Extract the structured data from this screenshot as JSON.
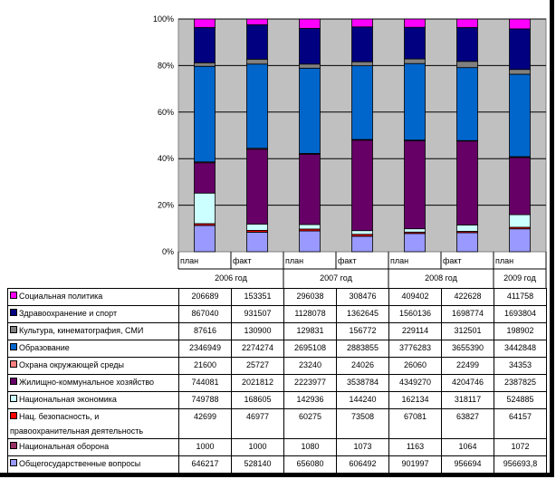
{
  "chart_data": {
    "type": "bar",
    "stacked": "percent",
    "title": "",
    "ylim": [
      0,
      100
    ],
    "yticks": [
      "0%",
      "20%",
      "40%",
      "60%",
      "80%",
      "100%"
    ],
    "categories": [
      {
        "sub": "план",
        "year": "2006 год"
      },
      {
        "sub": "факт",
        "year": "2006 год"
      },
      {
        "sub": "план",
        "year": "2007 год"
      },
      {
        "sub": "факт",
        "year": "2007 год"
      },
      {
        "sub": "план",
        "year": "2008 год"
      },
      {
        "sub": "факт",
        "year": "2008 год"
      },
      {
        "sub": "план",
        "year": "2009 год"
      }
    ],
    "years": [
      "2006 год",
      "2007 год",
      "2008 год",
      "2009 год"
    ],
    "legend_position": "table-left",
    "series": [
      {
        "name": "Социальная политика",
        "color": "#FF00FF",
        "values": [
          "206689",
          "153351",
          "296038",
          "308476",
          "409402",
          "422628",
          "411758"
        ]
      },
      {
        "name": "Здравоохранение и спорт",
        "color": "#000080",
        "values": [
          "867040",
          "931507",
          "1128078",
          "1362645",
          "1560136",
          "1698774",
          "1693804"
        ]
      },
      {
        "name": "Культура, кинематография, СМИ",
        "color": "#808080",
        "values": [
          "87616",
          "130900",
          "129831",
          "156772",
          "229114",
          "312501",
          "198902"
        ]
      },
      {
        "name": "Образование",
        "color": "#0066CC",
        "values": [
          "2346949",
          "2274274",
          "2695108",
          "2883855",
          "3776283",
          "3655390",
          "3442848"
        ]
      },
      {
        "name": "Охрана окружающей среды",
        "color": "#FF8080",
        "values": [
          "21600",
          "25727",
          "23240",
          "24026",
          "26060",
          "22499",
          "34353"
        ]
      },
      {
        "name": "Жилищно-коммунальное хозяйство",
        "color": "#660066",
        "values": [
          "744081",
          "2021812",
          "2223977",
          "3538784",
          "4349270",
          "4204746",
          "2387825"
        ]
      },
      {
        "name": "Национальная экономика",
        "color": "#CCFFFF",
        "values": [
          "749788",
          "168605",
          "142936",
          "144240",
          "162134",
          "318117",
          "524885"
        ]
      },
      {
        "name": "Нац. безопасность, и правоохранительная деятельность",
        "color": "#FF0000",
        "values": [
          "42699",
          "46977",
          "60275",
          "73508",
          "67081",
          "63827",
          "64157"
        ]
      },
      {
        "name": "Национальная оборона",
        "color": "#993366",
        "values": [
          "1000",
          "1000",
          "1080",
          "1073",
          "1163",
          "1064",
          "1072"
        ]
      },
      {
        "name": "Общегосударственные вопросы",
        "color": "#9999FF",
        "values": [
          "646217",
          "528140",
          "656080",
          "606492",
          "901997",
          "956694",
          "956693,8"
        ]
      }
    ]
  }
}
